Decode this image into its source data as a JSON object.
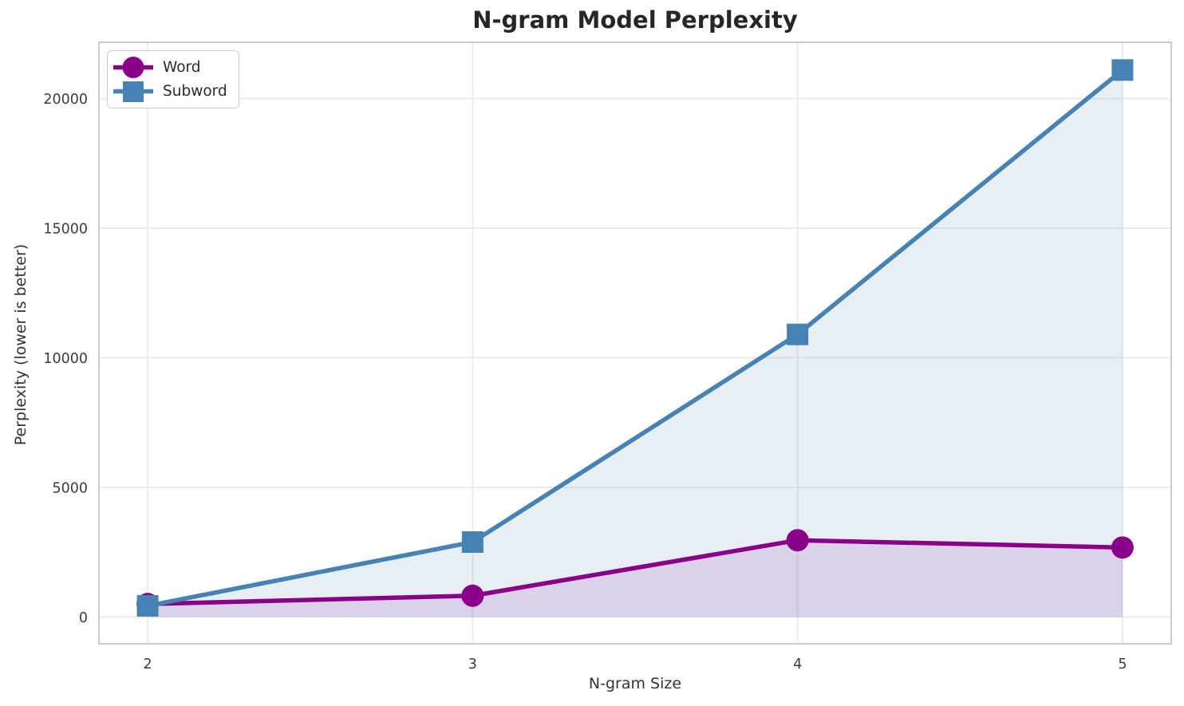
{
  "chart_data": {
    "type": "line",
    "title": "N-gram Model Perplexity",
    "xlabel": "N-gram Size",
    "ylabel": "Perplexity (lower is better)",
    "x": [
      2,
      3,
      4,
      5
    ],
    "series": [
      {
        "name": "Word",
        "values": [
          500,
          820,
          2960,
          2680
        ],
        "color": "#8B008B",
        "marker": "circle"
      },
      {
        "name": "Subword",
        "values": [
          430,
          2890,
          10900,
          21100
        ],
        "color": "#4682B4",
        "marker": "square"
      }
    ],
    "xticks": [
      2,
      3,
      4,
      5
    ],
    "yticks": [
      0,
      5000,
      10000,
      15000,
      20000
    ],
    "xlim": [
      1.85,
      5.15
    ],
    "ylim": [
      -1034,
      22170
    ],
    "grid": true,
    "legend_position": "upper-left",
    "area_fill": true,
    "area_fill_alpha": 0.13,
    "fill_baseline": 0
  },
  "colors": {
    "background": "#ffffff",
    "grid": "#e8e8e8",
    "spine": "#cccccc",
    "title_text": "#262626",
    "tick_text": "#3b3b3b",
    "word_series": "#8B008B",
    "subword_series": "#4682B4"
  }
}
